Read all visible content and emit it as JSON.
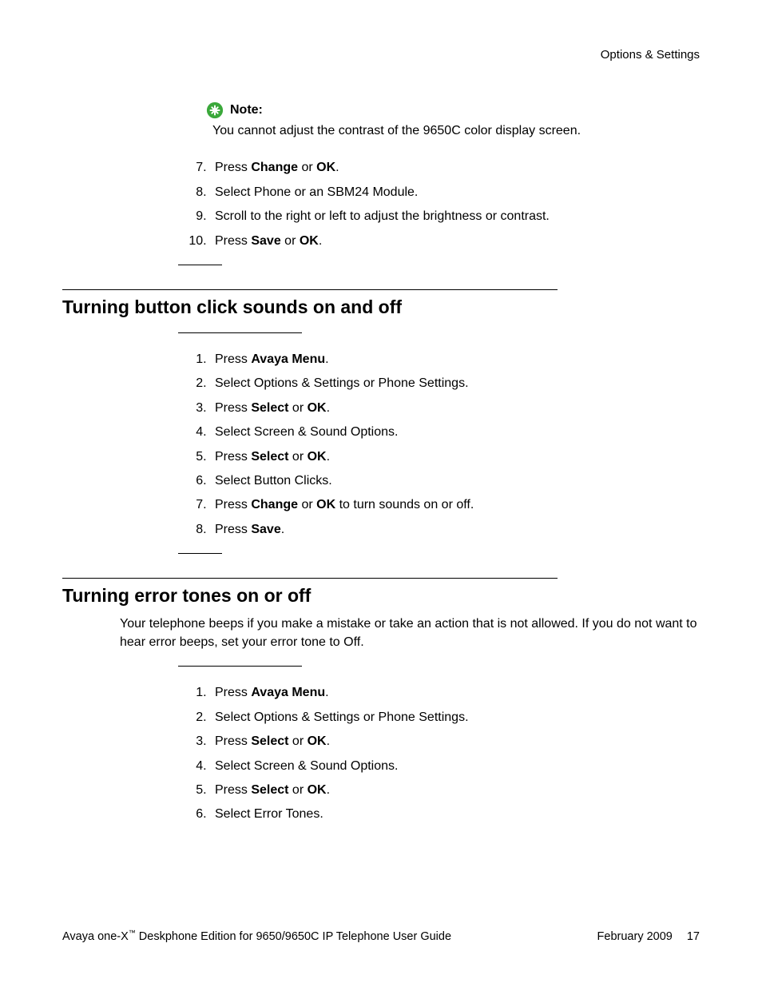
{
  "runningHead": "Options & Settings",
  "note": {
    "label": "Note:",
    "body": "You cannot adjust the contrast of the 9650C color display screen.",
    "iconFill": "#3aa83a",
    "iconGlyph": "#ffffff"
  },
  "topSteps": {
    "start": 7,
    "items": [
      {
        "pre": "Press ",
        "b1": "Change",
        "mid": " or ",
        "b2": "OK",
        "post": "."
      },
      {
        "pre": "Select Phone or an SBM24 Module."
      },
      {
        "pre": "Scroll to the right or left to adjust the brightness or contrast."
      },
      {
        "pre": "Press ",
        "b1": "Save",
        "mid": " or ",
        "b2": "OK",
        "post": "."
      }
    ]
  },
  "section1": {
    "title": "Turning button click sounds on and off",
    "steps": [
      {
        "pre": "Press ",
        "b1": "Avaya Menu",
        "post": "."
      },
      {
        "pre": "Select Options & Settings or Phone Settings."
      },
      {
        "pre": "Press ",
        "b1": "Select",
        "mid": " or ",
        "b2": "OK",
        "post": "."
      },
      {
        "pre": "Select Screen & Sound Options."
      },
      {
        "pre": "Press ",
        "b1": "Select",
        "mid": " or ",
        "b2": "OK",
        "post": "."
      },
      {
        "pre": "Select Button Clicks."
      },
      {
        "pre": "Press ",
        "b1": "Change",
        "mid": " or ",
        "b2": "OK",
        "post": " to turn sounds on or off."
      },
      {
        "pre": "Press ",
        "b1": "Save",
        "post": "."
      }
    ]
  },
  "section2": {
    "title": "Turning error tones on or off",
    "intro": "Your telephone beeps if you make a mistake or take an action that is not allowed. If you do not want to hear error beeps, set your error tone to Off.",
    "steps": [
      {
        "pre": "Press ",
        "b1": "Avaya Menu",
        "post": "."
      },
      {
        "pre": "Select Options & Settings or Phone Settings."
      },
      {
        "pre": "Press ",
        "b1": "Select",
        "mid": " or ",
        "b2": "OK",
        "post": "."
      },
      {
        "pre": "Select Screen & Sound Options."
      },
      {
        "pre": "Press ",
        "b1": "Select",
        "mid": " or ",
        "b2": "OK",
        "post": "."
      },
      {
        "pre": "Select Error Tones."
      }
    ]
  },
  "footer": {
    "productPre": "Avaya one-X",
    "tm": "™",
    "productPost": " Deskphone Edition for 9650/9650C IP Telephone User Guide",
    "date": "February 2009",
    "page": "17"
  }
}
